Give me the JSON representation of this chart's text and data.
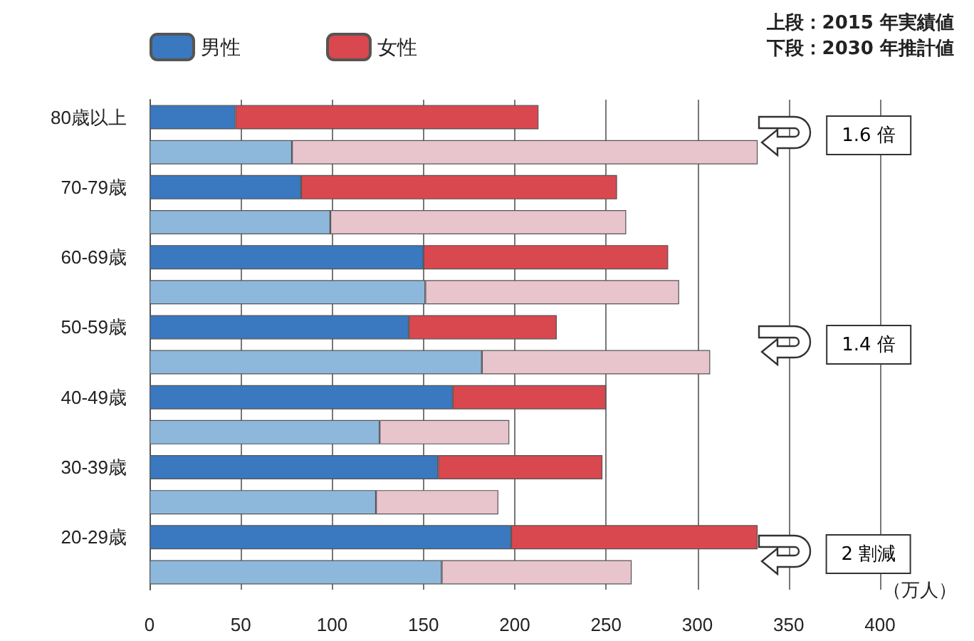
{
  "chart_data": {
    "type": "bar",
    "orientation": "horizontal",
    "stacked": true,
    "categories": [
      "80歳以上",
      null,
      "70-79歳",
      null,
      "60-69歳",
      null,
      "50-59歳",
      null,
      "40-49歳",
      null,
      "30-39歳",
      null,
      "20-29歳",
      null
    ],
    "series": [
      {
        "name": "男性",
        "color": "#3a78bf",
        "colors": [
          "#3a78bf",
          "#8db8dc",
          "#3a78bf",
          "#8db8dc",
          "#3a78bf",
          "#8db8dc",
          "#3a78bf",
          "#8db8dc",
          "#3a78bf",
          "#8db8dc",
          "#3a78bf",
          "#8db8dc",
          "#3a78bf",
          "#8db8dc"
        ],
        "values": [
          47,
          78,
          83,
          99,
          150,
          151,
          142,
          182,
          166,
          126,
          158,
          124,
          198,
          160
        ]
      },
      {
        "name": "女性",
        "color": "#d9474f",
        "colors": [
          "#d9474f",
          "#e8c4cc",
          "#d9474f",
          "#e8c4cc",
          "#d9474f",
          "#e8c4cc",
          "#d9474f",
          "#e8c4cc",
          "#d9474f",
          "#e8c4cc",
          "#d9474f",
          "#e8c4cc",
          "#d9474f",
          "#e8c4cc"
        ],
        "values": [
          166,
          255,
          173,
          162,
          134,
          139,
          81,
          125,
          84,
          71,
          90,
          67,
          135,
          104
        ]
      }
    ],
    "xlim": [
      0,
      400
    ],
    "xticks": [
      0,
      50,
      100,
      150,
      200,
      250,
      300,
      350,
      400
    ],
    "xlabel": "（万人）",
    "grid": "x",
    "legend": "top left",
    "annotations": [
      "上段：2015 年実績値",
      "下段：2030 年推計値",
      "1.6 倍",
      "1.4 倍",
      "2 割減"
    ]
  }
}
